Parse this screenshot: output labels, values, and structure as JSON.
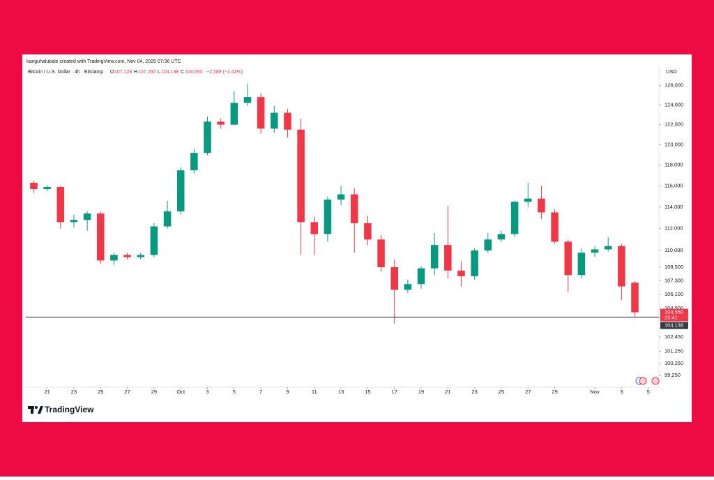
{
  "header": {
    "credit": "kanguhalubale created with TradingView.com, Nov 04, 2025 07:36 UTC",
    "symbol": "Bitcoin / U.S. Dollar · 4h · Bitstamp",
    "ohlc": [
      {
        "label": "O",
        "value": "107,128"
      },
      {
        "label": "H",
        "value": "107,260"
      },
      {
        "label": "L",
        "value": "104,138"
      },
      {
        "label": "C",
        "value": "104,550"
      }
    ],
    "change": "−2,589 (−2.42%)",
    "currency": "USD",
    "logo": "TradingView"
  },
  "chart_data": {
    "type": "candlestick",
    "log_scale": true,
    "grid": false,
    "up_color": "#089981",
    "down_color": "#f23645",
    "x": [
      20,
      21,
      22,
      23,
      24,
      25,
      26,
      27,
      28,
      29,
      30,
      31,
      32,
      33,
      34,
      35,
      36,
      37,
      38,
      39,
      40,
      41,
      42,
      43,
      44,
      45,
      46,
      47,
      48,
      49,
      50,
      51,
      52,
      53,
      54,
      55,
      56,
      57,
      58,
      59,
      60,
      61,
      62,
      63,
      64,
      65
    ],
    "open": [
      116300,
      115700,
      115900,
      112600,
      112800,
      113400,
      109100,
      109600,
      109400,
      109600,
      112200,
      113600,
      117500,
      119200,
      122300,
      122000,
      124200,
      124800,
      121600,
      123200,
      121500,
      112600,
      111500,
      114700,
      115200,
      112500,
      111000,
      108500,
      106500,
      107000,
      108400,
      110500,
      108200,
      107700,
      110000,
      111000,
      111500,
      114500,
      114800,
      113500,
      110800,
      107800,
      109800,
      110100,
      110400,
      107128
    ],
    "high": [
      116500,
      116100,
      116000,
      113300,
      113600,
      113600,
      109800,
      109800,
      109800,
      112500,
      114600,
      117800,
      119600,
      122800,
      122600,
      125400,
      126200,
      125200,
      123900,
      123600,
      122600,
      113100,
      115000,
      116000,
      115800,
      113200,
      111400,
      109200,
      107400,
      108600,
      111600,
      114100,
      109000,
      110200,
      111600,
      111800,
      114600,
      116300,
      116000,
      113800,
      111000,
      110200,
      110400,
      111200,
      110600,
      107260
    ],
    "low": [
      115300,
      115500,
      112000,
      112100,
      111800,
      108800,
      108700,
      109200,
      109200,
      109400,
      112000,
      113300,
      117200,
      119000,
      121600,
      121900,
      123900,
      121100,
      121200,
      120700,
      109600,
      109600,
      110800,
      114200,
      109800,
      110500,
      108100,
      103600,
      106200,
      106600,
      107800,
      107500,
      106800,
      107400,
      109800,
      110800,
      111200,
      114000,
      112900,
      110600,
      106300,
      107500,
      109400,
      109900,
      105600,
      104138
    ],
    "close": [
      115700,
      115900,
      112600,
      112800,
      113400,
      109100,
      109600,
      109400,
      109600,
      112200,
      113600,
      117500,
      119200,
      122300,
      122000,
      124200,
      124800,
      121600,
      123200,
      121500,
      112600,
      111500,
      114700,
      115200,
      112500,
      111000,
      108500,
      106500,
      107000,
      108400,
      110500,
      108200,
      107700,
      110000,
      111000,
      111500,
      114500,
      114800,
      113500,
      110800,
      107800,
      109800,
      110100,
      110400,
      106800,
      104550
    ],
    "xlim": [
      19.4,
      66.8
    ],
    "xticks": [
      {
        "value": 21,
        "label": "21"
      },
      {
        "value": 23,
        "label": "23"
      },
      {
        "value": 25,
        "label": "25"
      },
      {
        "value": 27,
        "label": "27"
      },
      {
        "value": 29,
        "label": "29"
      },
      {
        "value": 31,
        "label": "Oct"
      },
      {
        "value": 33,
        "label": "3"
      },
      {
        "value": 35,
        "label": "5"
      },
      {
        "value": 37,
        "label": "7"
      },
      {
        "value": 39,
        "label": "9"
      },
      {
        "value": 41,
        "label": "11"
      },
      {
        "value": 43,
        "label": "13"
      },
      {
        "value": 45,
        "label": "15"
      },
      {
        "value": 47,
        "label": "17"
      },
      {
        "value": 49,
        "label": "19"
      },
      {
        "value": 51,
        "label": "21"
      },
      {
        "value": 53,
        "label": "23"
      },
      {
        "value": 55,
        "label": "25"
      },
      {
        "value": 57,
        "label": "27"
      },
      {
        "value": 59,
        "label": "29"
      },
      {
        "value": 62,
        "label": "Nov"
      },
      {
        "value": 64,
        "label": "3"
      },
      {
        "value": 66,
        "label": "5"
      }
    ],
    "ylim": [
      98300,
      128000
    ],
    "yticks": [
      {
        "value": 126000,
        "label": "126,000"
      },
      {
        "value": 124000,
        "label": "124,000"
      },
      {
        "value": 122000,
        "label": "122,000"
      },
      {
        "value": 120000,
        "label": "120,000"
      },
      {
        "value": 118000,
        "label": "118,000"
      },
      {
        "value": 116000,
        "label": "116,000"
      },
      {
        "value": 114000,
        "label": "114,000"
      },
      {
        "value": 112000,
        "label": "112,000"
      },
      {
        "value": 110000,
        "label": "110,000"
      },
      {
        "value": 108500,
        "label": "108,500"
      },
      {
        "value": 107300,
        "label": "107,300"
      },
      {
        "value": 106100,
        "label": "106,100"
      },
      {
        "value": 104900,
        "label": "104,900"
      },
      {
        "value": 102450,
        "label": "102,450"
      },
      {
        "value": 101250,
        "label": "101,250"
      },
      {
        "value": 100250,
        "label": "100,250"
      },
      {
        "value": 99250,
        "label": "99,250"
      }
    ],
    "last_price": {
      "value": 104550,
      "label": "104,550",
      "countdown": "23:41"
    },
    "low_line": {
      "value": 104138,
      "label": "104,138"
    }
  }
}
